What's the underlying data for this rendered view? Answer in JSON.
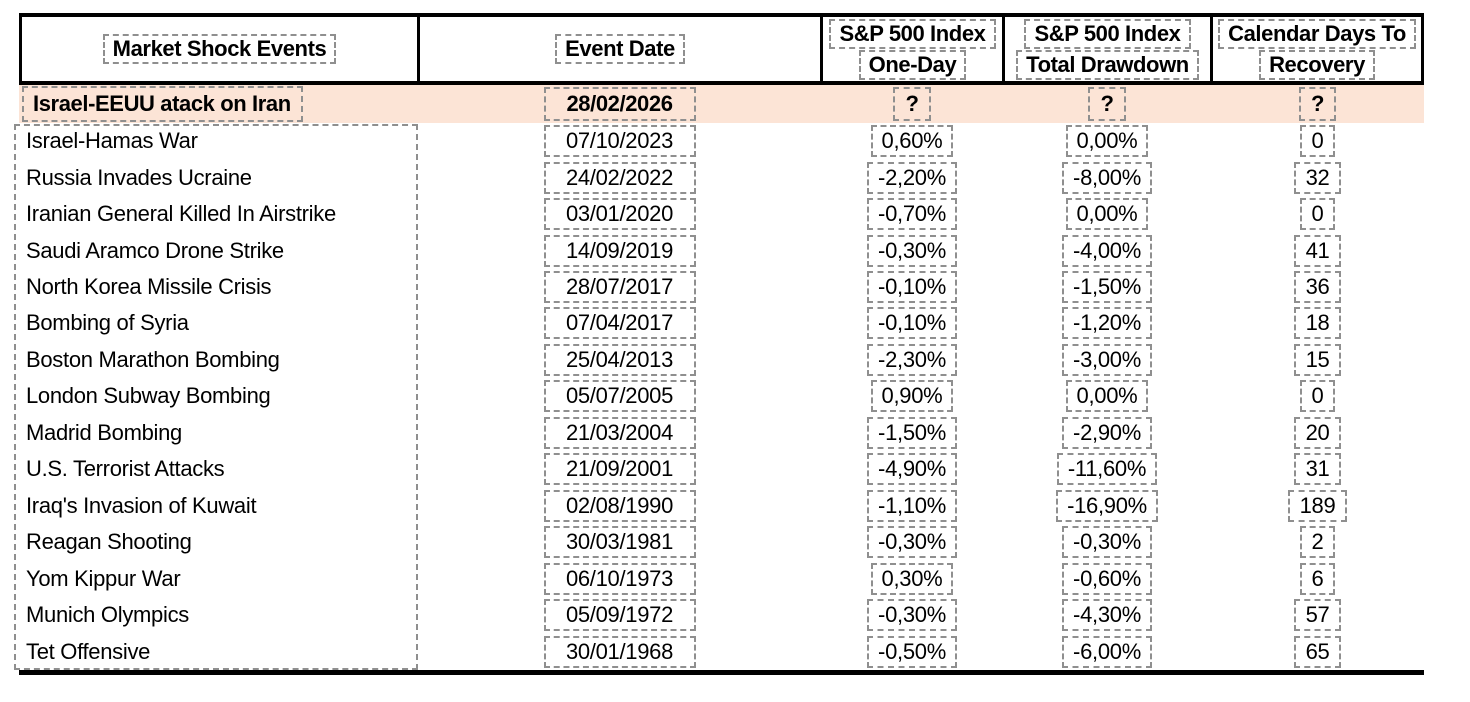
{
  "colors": {
    "highlight_background": "#FCE4D6",
    "table_border": "#000000",
    "dashed_outline": "#8f8f8f",
    "text": "#000000"
  },
  "table": {
    "headers": [
      {
        "lines": [
          "Market Shock Events"
        ]
      },
      {
        "lines": [
          "Event Date"
        ]
      },
      {
        "lines": [
          "S&P 500 Index",
          "One-Day"
        ]
      },
      {
        "lines": [
          "S&P 500 Index",
          "Total Drawdown"
        ]
      },
      {
        "lines": [
          "Calendar Days To",
          "Recovery"
        ]
      }
    ],
    "highlight_row": {
      "event": "Israel-EEUU atack on Iran",
      "date": "28/02/2026",
      "one_day": "?",
      "total_drawdown": "?",
      "days_to_recovery": "?"
    },
    "rows": [
      {
        "event": "Israel-Hamas War",
        "date": "07/10/2023",
        "one_day": "0,60%",
        "total_drawdown": "0,00%",
        "days_to_recovery": "0"
      },
      {
        "event": "Russia Invades Ucraine",
        "date": "24/02/2022",
        "one_day": "-2,20%",
        "total_drawdown": "-8,00%",
        "days_to_recovery": "32"
      },
      {
        "event": "Iranian General Killed In Airstrike",
        "date": "03/01/2020",
        "one_day": "-0,70%",
        "total_drawdown": "0,00%",
        "days_to_recovery": "0"
      },
      {
        "event": "Saudi Aramco Drone Strike",
        "date": "14/09/2019",
        "one_day": "-0,30%",
        "total_drawdown": "-4,00%",
        "days_to_recovery": "41"
      },
      {
        "event": "North Korea Missile Crisis",
        "date": "28/07/2017",
        "one_day": "-0,10%",
        "total_drawdown": "-1,50%",
        "days_to_recovery": "36"
      },
      {
        "event": "Bombing of Syria",
        "date": "07/04/2017",
        "one_day": "-0,10%",
        "total_drawdown": "-1,20%",
        "days_to_recovery": "18"
      },
      {
        "event": "Boston Marathon Bombing",
        "date": "25/04/2013",
        "one_day": "-2,30%",
        "total_drawdown": "-3,00%",
        "days_to_recovery": "15"
      },
      {
        "event": "London Subway Bombing",
        "date": "05/07/2005",
        "one_day": "0,90%",
        "total_drawdown": "0,00%",
        "days_to_recovery": "0"
      },
      {
        "event": "Madrid Bombing",
        "date": "21/03/2004",
        "one_day": "-1,50%",
        "total_drawdown": "-2,90%",
        "days_to_recovery": "20"
      },
      {
        "event": "U.S. Terrorist Attacks",
        "date": "21/09/2001",
        "one_day": "-4,90%",
        "total_drawdown": "-11,60%",
        "days_to_recovery": "31"
      },
      {
        "event": "Iraq's Invasion of Kuwait",
        "date": "02/08/1990",
        "one_day": "-1,10%",
        "total_drawdown": "-16,90%",
        "days_to_recovery": "189"
      },
      {
        "event": "Reagan Shooting",
        "date": "30/03/1981",
        "one_day": "-0,30%",
        "total_drawdown": "-0,30%",
        "days_to_recovery": "2"
      },
      {
        "event": "Yom Kippur War",
        "date": "06/10/1973",
        "one_day": "0,30%",
        "total_drawdown": "-0,60%",
        "days_to_recovery": "6"
      },
      {
        "event": "Munich Olympics",
        "date": "05/09/1972",
        "one_day": "-0,30%",
        "total_drawdown": "-4,30%",
        "days_to_recovery": "57"
      },
      {
        "event": "Tet Offensive",
        "date": "30/01/1968",
        "one_day": "-0,50%",
        "total_drawdown": "-6,00%",
        "days_to_recovery": "65"
      }
    ]
  }
}
